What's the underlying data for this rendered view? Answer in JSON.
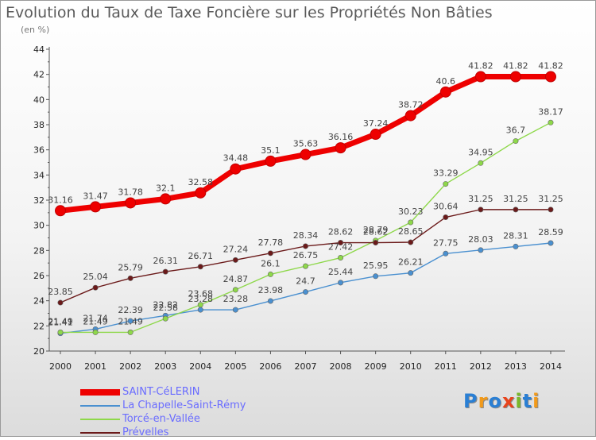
{
  "header": {
    "title": "Evolution du Taux de Taxe Foncière sur les Propriétés Non Bâties",
    "subtitle": "(en %)"
  },
  "logo": {
    "text": "Proxiti",
    "colors": [
      "#2a7fd4",
      "#f29a1a",
      "#2a7fd4",
      "#e8431c",
      "#7ab829",
      "#2a7fd4",
      "#f29a1a"
    ]
  },
  "chart_data": {
    "type": "line",
    "title": "Evolution du Taux de Taxe Foncière sur les Propriétés Non Bâties",
    "ylabel": "(en %)",
    "xlabel": "",
    "ylim": [
      20,
      44
    ],
    "yticks": [
      20,
      22,
      24,
      26,
      28,
      30,
      32,
      34,
      36,
      38,
      40,
      42,
      44
    ],
    "categories": [
      "2000",
      "2001",
      "2002",
      "2003",
      "2004",
      "2005",
      "2006",
      "2007",
      "2008",
      "2009",
      "2010",
      "2011",
      "2012",
      "2013",
      "2014"
    ],
    "grid": false,
    "legend": "bottom-left",
    "series": [
      {
        "name": "SAINT-CéLERIN",
        "color": "#ee0000",
        "width": "thick",
        "values": [
          31.16,
          31.47,
          31.78,
          32.1,
          32.58,
          34.48,
          35.1,
          35.63,
          36.16,
          37.24,
          38.72,
          40.6,
          41.82,
          41.82,
          41.82
        ]
      },
      {
        "name": "La Chapelle-Saint-Rémy",
        "color": "#4a90d0",
        "width": "thin",
        "values": [
          21.41,
          21.74,
          22.39,
          22.82,
          23.28,
          23.28,
          23.98,
          24.7,
          25.44,
          25.95,
          26.21,
          27.75,
          28.03,
          28.31,
          28.59
        ]
      },
      {
        "name": "Torcé-en-Vallée",
        "color": "#8ed84a",
        "width": "thin",
        "values": [
          21.49,
          21.49,
          21.49,
          22.58,
          23.68,
          24.87,
          26.1,
          26.75,
          27.42,
          28.79,
          30.23,
          33.29,
          34.95,
          36.7,
          38.17
        ]
      },
      {
        "name": "Prévelles",
        "color": "#6b1a1a",
        "width": "thin",
        "values": [
          23.85,
          25.04,
          25.79,
          26.31,
          26.71,
          27.24,
          27.78,
          28.34,
          28.62,
          28.62,
          28.65,
          30.64,
          31.25,
          31.25,
          31.25
        ]
      }
    ]
  }
}
